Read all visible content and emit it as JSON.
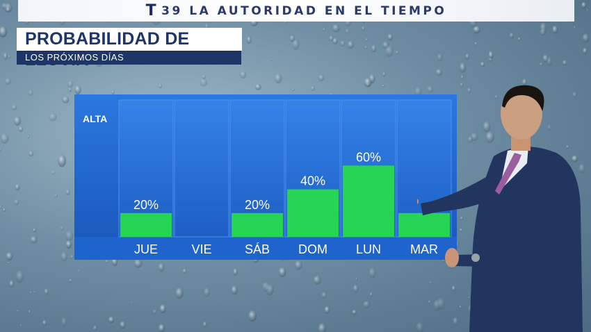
{
  "banner": {
    "logo_glyph": "T",
    "text": "39 LA AUTORIDAD EN EL TIEMPO"
  },
  "title": {
    "main": "PROBABILIDAD DE LLUVIA",
    "subtitle": "LOS PRÓXIMOS DÍAS"
  },
  "chart_data": {
    "type": "bar",
    "title": "PROBABILIDAD DE LLUVIA",
    "subtitle": "LOS PRÓXIMOS DÍAS",
    "categories": [
      "JUE",
      "VIE",
      "SÁB",
      "DOM",
      "LUN",
      "MAR"
    ],
    "values": [
      20,
      null,
      20,
      40,
      60,
      20
    ],
    "labels": [
      "20%",
      "",
      "20%",
      "40%",
      "60%",
      ""
    ],
    "ylabel_top": "ALTA",
    "ylim": [
      0,
      100
    ],
    "bar_color": "#27d454",
    "panel_color": "#1d62c7",
    "grid": false
  }
}
